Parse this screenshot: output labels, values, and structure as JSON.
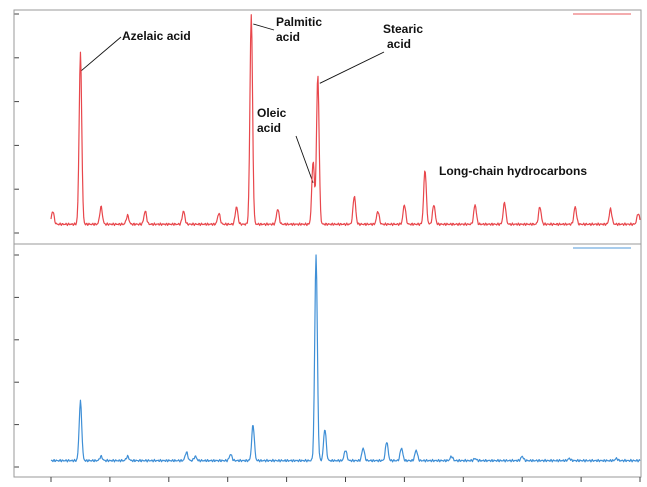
{
  "chart_data": [
    {
      "type": "line",
      "title": "",
      "xlabel": "",
      "ylabel": "",
      "grid": false,
      "color": "#e8474c",
      "xlim": [
        0,
        100
      ],
      "ylim": [
        0,
        100
      ],
      "baseline": 4,
      "peaks": [
        {
          "x": 5.0,
          "y": 82,
          "label": "Azelaic acid"
        },
        {
          "x": 0.3,
          "y": 10
        },
        {
          "x": 8.5,
          "y": 12
        },
        {
          "x": 13.0,
          "y": 8
        },
        {
          "x": 16.0,
          "y": 10
        },
        {
          "x": 22.5,
          "y": 10
        },
        {
          "x": 28.5,
          "y": 9
        },
        {
          "x": 31.5,
          "y": 12
        },
        {
          "x": 34.0,
          "y": 100,
          "label": "Palmitic acid"
        },
        {
          "x": 38.5,
          "y": 11
        },
        {
          "x": 44.5,
          "y": 33,
          "label": "Oleic acid"
        },
        {
          "x": 45.3,
          "y": 72,
          "label": "Stearic acid"
        },
        {
          "x": 51.5,
          "y": 17
        },
        {
          "x": 55.5,
          "y": 10
        },
        {
          "x": 60.0,
          "y": 13
        },
        {
          "x": 63.5,
          "y": 29
        },
        {
          "x": 65.0,
          "y": 13
        },
        {
          "x": 72.0,
          "y": 13
        },
        {
          "x": 77.0,
          "y": 14
        },
        {
          "x": 83.0,
          "y": 12
        },
        {
          "x": 89.0,
          "y": 12
        },
        {
          "x": 95.0,
          "y": 11
        },
        {
          "x": 99.7,
          "y": 9
        }
      ],
      "annotations": [
        {
          "lines": [
            "Azelaic acid"
          ],
          "peak": "Azelaic acid"
        },
        {
          "lines": [
            "Palmitic",
            "acid"
          ],
          "peak": "Palmitic acid"
        },
        {
          "lines": [
            "Stearic",
            "acid"
          ],
          "peak": "Stearic acid"
        },
        {
          "lines": [
            "Oleic",
            "acid"
          ],
          "peak": "Oleic acid"
        },
        {
          "lines": [
            "Long-chain hydrocarbons"
          ],
          "peak": ""
        }
      ]
    },
    {
      "type": "line",
      "title": "",
      "xlabel": "",
      "ylabel": "",
      "grid": false,
      "color": "#3f8fd6",
      "xlim": [
        0,
        100
      ],
      "ylim": [
        0,
        100
      ],
      "baseline": 3,
      "peaks": [
        {
          "x": 5.0,
          "y": 31
        },
        {
          "x": 8.5,
          "y": 5
        },
        {
          "x": 13.0,
          "y": 5
        },
        {
          "x": 23.0,
          "y": 7
        },
        {
          "x": 24.5,
          "y": 5
        },
        {
          "x": 30.5,
          "y": 6
        },
        {
          "x": 34.3,
          "y": 20
        },
        {
          "x": 45.0,
          "y": 100
        },
        {
          "x": 46.5,
          "y": 18
        },
        {
          "x": 50.0,
          "y": 8
        },
        {
          "x": 53.0,
          "y": 9
        },
        {
          "x": 57.0,
          "y": 12
        },
        {
          "x": 59.5,
          "y": 9
        },
        {
          "x": 62.0,
          "y": 8
        },
        {
          "x": 68.0,
          "y": 5
        },
        {
          "x": 72.0,
          "y": 4
        },
        {
          "x": 80.0,
          "y": 5
        },
        {
          "x": 88.0,
          "y": 4
        },
        {
          "x": 96.0,
          "y": 4
        }
      ]
    }
  ]
}
